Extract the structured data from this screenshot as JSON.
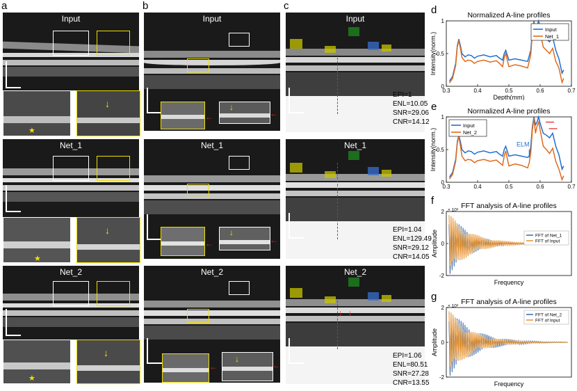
{
  "panel_letters": {
    "a": "a",
    "b": "b",
    "c": "c",
    "d": "d",
    "e": "e",
    "f": "f",
    "g": "g"
  },
  "image_titles": {
    "a_input": "Input",
    "a_net1": "Net_1",
    "a_net2": "Net_2",
    "b_input": "Input",
    "b_net1": "Net_1",
    "b_net2": "Net_2",
    "c_input": "Input",
    "c_net1": "Net_1",
    "c_net2": "Net_2"
  },
  "metrics": {
    "input": [
      "EPI=1",
      "ENL=10.05",
      "SNR=29.06",
      "CNR=14.12"
    ],
    "net1": [
      "EPI=1.04",
      "ENL=129.49",
      "SNR=29.12",
      "CNR=14.05"
    ],
    "net2": [
      "EPI=1.06",
      "ENL=80.51",
      "SNR=27.28",
      "CNR=13.55"
    ]
  },
  "markers": {
    "star": "★",
    "arrow_down": "↓",
    "arrow_left": "←"
  },
  "colors": {
    "blue": "#1f6fd0",
    "orange": "#e06a1a",
    "fft_blue": "#2c5fa0",
    "fft_orange": "#e8891a",
    "yellow": "#f0e000",
    "green": "#1e8a1e",
    "red": "#e02020"
  },
  "chart_data": [
    {
      "id": "d",
      "type": "line",
      "title": "Normalized A-line profiles",
      "xlabel": "Depth(mm)",
      "ylabel": "Intensity(norm.)",
      "xlim": [
        0.3,
        0.7
      ],
      "ylim": [
        0,
        1
      ],
      "xticks": [
        "0.3",
        "0.4",
        "0.5",
        "0.6",
        "0.7"
      ],
      "xtick_values": [
        0.3,
        0.4,
        0.5,
        0.6,
        0.7
      ],
      "yticks": [
        "0",
        "0.5",
        "1"
      ],
      "ytick_values": [
        0,
        0.5,
        1
      ],
      "legend": "top-right",
      "series": [
        {
          "name": "Input",
          "color": "#1f6fd0",
          "x": [
            0.31,
            0.32,
            0.33,
            0.335,
            0.34,
            0.345,
            0.35,
            0.36,
            0.37,
            0.38,
            0.39,
            0.4,
            0.42,
            0.44,
            0.46,
            0.47,
            0.48,
            0.485,
            0.49,
            0.5,
            0.52,
            0.54,
            0.56,
            0.57,
            0.575,
            0.58,
            0.585,
            0.59,
            0.595,
            0.6,
            0.61,
            0.62,
            0.63,
            0.64,
            0.65,
            0.66,
            0.67,
            0.675
          ],
          "y": [
            0.08,
            0.15,
            0.35,
            0.62,
            0.72,
            0.62,
            0.5,
            0.45,
            0.48,
            0.47,
            0.43,
            0.46,
            0.48,
            0.45,
            0.47,
            0.43,
            0.4,
            0.5,
            0.55,
            0.4,
            0.42,
            0.4,
            0.38,
            0.55,
            0.85,
            1.0,
            0.88,
            0.92,
            1.0,
            0.9,
            0.75,
            0.72,
            0.68,
            0.75,
            0.55,
            0.42,
            0.2,
            0.25
          ]
        },
        {
          "name": "Net_1",
          "color": "#e06a1a",
          "x": [
            0.31,
            0.32,
            0.33,
            0.335,
            0.34,
            0.345,
            0.35,
            0.36,
            0.37,
            0.38,
            0.39,
            0.4,
            0.42,
            0.44,
            0.46,
            0.47,
            0.48,
            0.485,
            0.49,
            0.5,
            0.52,
            0.54,
            0.56,
            0.57,
            0.575,
            0.58,
            0.585,
            0.59,
            0.595,
            0.6,
            0.61,
            0.62,
            0.63,
            0.64,
            0.65,
            0.66,
            0.67,
            0.675
          ],
          "y": [
            0.05,
            0.12,
            0.32,
            0.6,
            0.7,
            0.58,
            0.44,
            0.38,
            0.4,
            0.39,
            0.35,
            0.38,
            0.4,
            0.37,
            0.39,
            0.35,
            0.3,
            0.44,
            0.5,
            0.3,
            0.33,
            0.31,
            0.28,
            0.48,
            0.82,
            0.98,
            0.8,
            0.88,
            0.97,
            0.82,
            0.6,
            0.55,
            0.5,
            0.58,
            0.38,
            0.28,
            0.06,
            0.12
          ]
        }
      ]
    },
    {
      "id": "e",
      "type": "line",
      "title": "Normalized A-line profiles",
      "xlabel": "",
      "ylabel": "Intensity(norm.)",
      "xlim": [
        0.3,
        0.7
      ],
      "ylim": [
        0,
        1
      ],
      "xticks": [
        "0.3",
        "0.4",
        "0.5",
        "0.6",
        "0.7"
      ],
      "xtick_values": [
        0.3,
        0.4,
        0.5,
        0.6,
        0.7
      ],
      "yticks": [
        "0",
        "0.5",
        "1"
      ],
      "ytick_values": [
        0,
        0.5,
        1
      ],
      "legend": "top-left",
      "annotation": "ELM",
      "series": [
        {
          "name": "Input",
          "color": "#1f6fd0",
          "x": [
            0.31,
            0.32,
            0.33,
            0.335,
            0.34,
            0.345,
            0.35,
            0.36,
            0.37,
            0.38,
            0.39,
            0.4,
            0.42,
            0.44,
            0.46,
            0.47,
            0.48,
            0.485,
            0.49,
            0.5,
            0.52,
            0.54,
            0.56,
            0.565,
            0.57,
            0.575,
            0.58,
            0.585,
            0.59,
            0.595,
            0.6,
            0.61,
            0.62,
            0.63,
            0.64,
            0.65,
            0.66,
            0.67,
            0.675
          ],
          "y": [
            0.08,
            0.15,
            0.35,
            0.62,
            0.72,
            0.62,
            0.5,
            0.45,
            0.48,
            0.47,
            0.43,
            0.46,
            0.48,
            0.45,
            0.47,
            0.43,
            0.4,
            0.5,
            0.55,
            0.4,
            0.42,
            0.4,
            0.38,
            0.4,
            0.55,
            0.85,
            1.0,
            0.88,
            0.92,
            1.0,
            0.9,
            0.75,
            0.72,
            0.68,
            0.75,
            0.55,
            0.42,
            0.2,
            0.25
          ]
        },
        {
          "name": "Net_2",
          "color": "#e06a1a",
          "x": [
            0.31,
            0.32,
            0.33,
            0.335,
            0.34,
            0.345,
            0.35,
            0.36,
            0.37,
            0.38,
            0.39,
            0.4,
            0.42,
            0.44,
            0.46,
            0.47,
            0.48,
            0.485,
            0.49,
            0.5,
            0.52,
            0.54,
            0.56,
            0.565,
            0.57,
            0.575,
            0.58,
            0.585,
            0.59,
            0.595,
            0.6,
            0.61,
            0.62,
            0.63,
            0.64,
            0.65,
            0.66,
            0.67,
            0.675
          ],
          "y": [
            0.05,
            0.12,
            0.32,
            0.6,
            0.7,
            0.56,
            0.4,
            0.33,
            0.35,
            0.34,
            0.3,
            0.33,
            0.35,
            0.32,
            0.34,
            0.3,
            0.26,
            0.4,
            0.48,
            0.25,
            0.28,
            0.26,
            0.22,
            0.3,
            0.45,
            0.8,
            0.98,
            0.75,
            0.86,
            0.92,
            0.8,
            0.55,
            0.5,
            0.44,
            0.52,
            0.32,
            0.2,
            0.04,
            0.1
          ]
        }
      ]
    },
    {
      "id": "f",
      "type": "line",
      "title": "FFT analysis of A-line profiles",
      "xlabel": "Frequency",
      "ylabel": "Amplitude",
      "exponent": "× 10³",
      "ylim": [
        -2,
        2
      ],
      "yticks": [
        "-2",
        "0",
        "2"
      ],
      "ytick_values": [
        -2,
        0,
        2
      ],
      "legend": "right",
      "series": [
        {
          "name": "FFT of Net_1",
          "color": "#2c5fa0",
          "amp0": 2.0,
          "decay": 0.05,
          "n": 120
        },
        {
          "name": "FFT of Input",
          "color": "#e8891a",
          "amp0": 1.9,
          "decay": 0.045,
          "n": 120
        }
      ]
    },
    {
      "id": "g",
      "type": "line",
      "title": "FFT analysis of A-line profiles",
      "xlabel": "Frequency",
      "ylabel": "Amplitude",
      "exponent": "× 10³",
      "ylim": [
        -2,
        2
      ],
      "yticks": [
        "-2",
        "0",
        "2"
      ],
      "ytick_values": [
        -2,
        0,
        2
      ],
      "legend": "top-right",
      "series": [
        {
          "name": "FFT of Net_2",
          "color": "#2c5fa0",
          "amp0": 2.0,
          "decay": 0.04,
          "n": 120
        },
        {
          "name": "FFT of Input",
          "color": "#e8891a",
          "amp0": 1.9,
          "decay": 0.045,
          "n": 120
        }
      ]
    }
  ]
}
